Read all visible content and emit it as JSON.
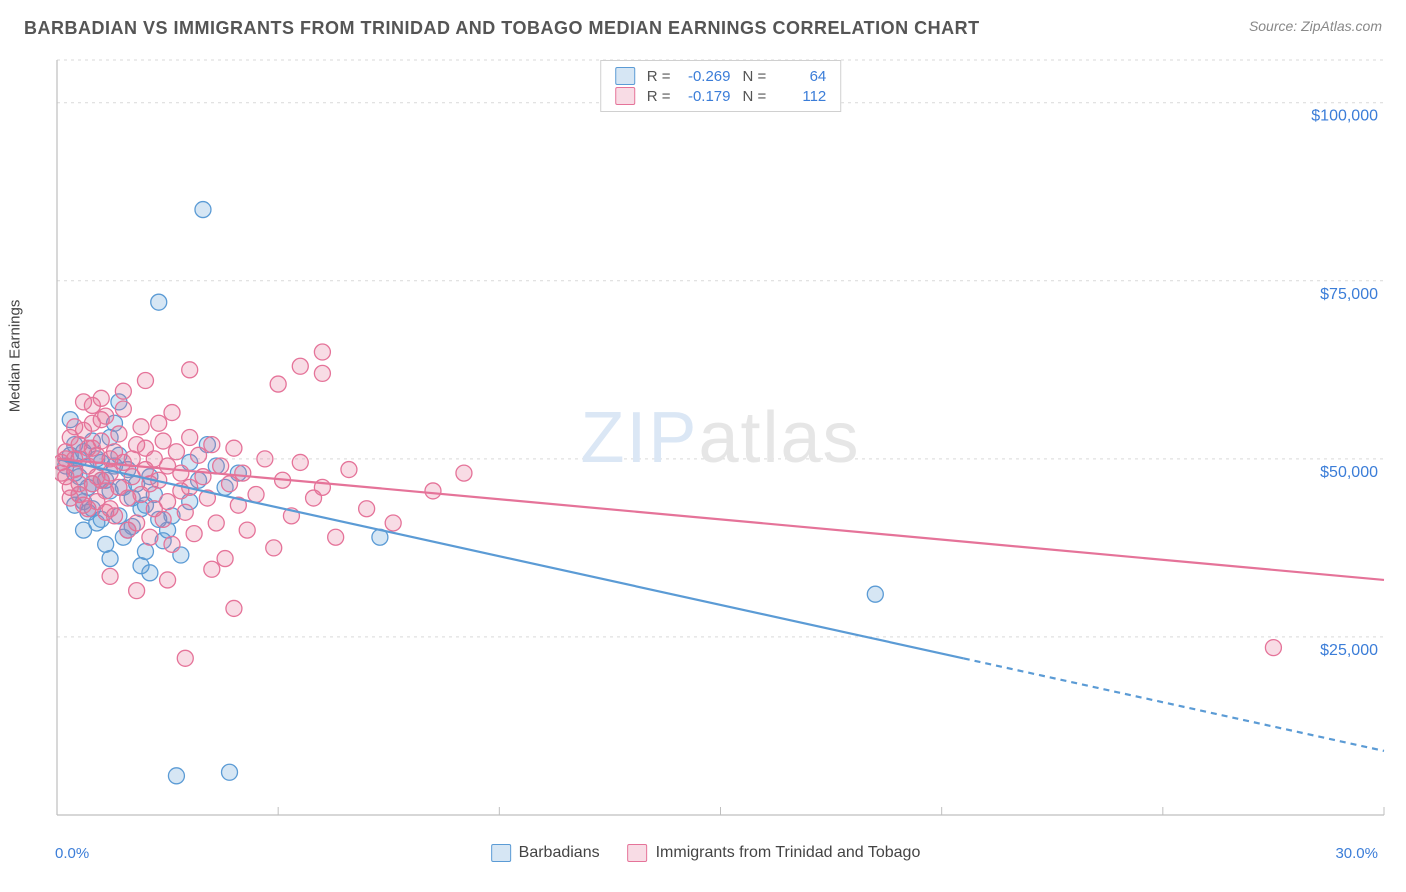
{
  "title": "BARBADIAN VS IMMIGRANTS FROM TRINIDAD AND TOBAGO MEDIAN EARNINGS CORRELATION CHART",
  "source": "Source: ZipAtlas.com",
  "watermark_a": "ZIP",
  "watermark_b": "atlas",
  "ylabel": "Median Earnings",
  "chart": {
    "type": "scatter-correlation",
    "xlim": [
      0.0,
      30.0
    ],
    "ylim": [
      0,
      106000
    ],
    "x_tick_label_left": "0.0%",
    "x_tick_label_right": "30.0%",
    "y_grid": [
      25000,
      50000,
      75000,
      100000
    ],
    "y_grid_labels": [
      "$25,000",
      "$50,000",
      "$75,000",
      "$100,000"
    ],
    "x_ticks": [
      0,
      5,
      10,
      15,
      20,
      25,
      30
    ],
    "grid_color": "#d9d9d9",
    "axis_color": "#bfbfbf",
    "tick_label_color": "#3b7dd8",
    "background_color": "#ffffff",
    "marker_radius": 8,
    "marker_fill_opacity": 0.25,
    "marker_stroke_width": 1.3,
    "trend_line_width": 2.2,
    "series": [
      {
        "key": "barbadians",
        "label": "Barbadians",
        "color": "#5b9bd5",
        "fill": "rgba(91,155,213,0.25)",
        "R": "-0.269",
        "N": "64",
        "trend": {
          "x1": 0.0,
          "y1": 50000,
          "x2": 30.0,
          "y2": 9000,
          "solid_until_x": 20.5
        },
        "points": [
          [
            0.2,
            49000
          ],
          [
            0.3,
            50500
          ],
          [
            0.4,
            48000
          ],
          [
            0.4,
            52000
          ],
          [
            0.5,
            45000
          ],
          [
            0.5,
            47500
          ],
          [
            0.6,
            51000
          ],
          [
            0.6,
            44000
          ],
          [
            0.7,
            46000
          ],
          [
            0.8,
            43000
          ],
          [
            0.8,
            52500
          ],
          [
            0.9,
            41000
          ],
          [
            1.0,
            47000
          ],
          [
            1.0,
            49500
          ],
          [
            1.1,
            38000
          ],
          [
            1.2,
            53000
          ],
          [
            1.2,
            45500
          ],
          [
            1.3,
            55000
          ],
          [
            1.4,
            58000
          ],
          [
            1.4,
            42000
          ],
          [
            1.5,
            39000
          ],
          [
            1.6,
            40000
          ],
          [
            1.6,
            48500
          ],
          [
            1.7,
            44500
          ],
          [
            1.8,
            46500
          ],
          [
            1.9,
            35000
          ],
          [
            2.0,
            43500
          ],
          [
            2.0,
            37000
          ],
          [
            2.1,
            34000
          ],
          [
            2.2,
            45000
          ],
          [
            2.3,
            41500
          ],
          [
            2.4,
            38500
          ],
          [
            2.6,
            42000
          ],
          [
            2.8,
            36500
          ],
          [
            3.0,
            44000
          ],
          [
            3.2,
            47000
          ],
          [
            3.4,
            52000
          ],
          [
            3.6,
            49000
          ],
          [
            3.8,
            46000
          ],
          [
            4.1,
            48000
          ],
          [
            2.3,
            72000
          ],
          [
            3.3,
            85000
          ],
          [
            2.7,
            5500
          ],
          [
            3.9,
            6000
          ],
          [
            7.3,
            39000
          ],
          [
            18.5,
            31000
          ],
          [
            0.3,
            55500
          ],
          [
            0.4,
            43500
          ],
          [
            0.5,
            50000
          ],
          [
            0.6,
            40000
          ],
          [
            0.7,
            42500
          ],
          [
            0.8,
            46500
          ],
          [
            0.9,
            50000
          ],
          [
            1.0,
            41500
          ],
          [
            1.1,
            47000
          ],
          [
            1.2,
            36000
          ],
          [
            1.3,
            49000
          ],
          [
            1.4,
            50500
          ],
          [
            1.5,
            46000
          ],
          [
            1.7,
            40500
          ],
          [
            1.9,
            43000
          ],
          [
            2.1,
            47500
          ],
          [
            2.5,
            40000
          ],
          [
            3.0,
            49500
          ]
        ]
      },
      {
        "key": "trinidad",
        "label": "Immigrants from Trinidad and Tobago",
        "color": "#e57399",
        "fill": "rgba(229,115,153,0.25)",
        "R": "-0.179",
        "N": "112",
        "trend": {
          "x1": 0.0,
          "y1": 50000,
          "x2": 30.0,
          "y2": 33000,
          "solid_until_x": 30.0
        },
        "points": [
          [
            0.1,
            49500
          ],
          [
            0.2,
            51000
          ],
          [
            0.2,
            47500
          ],
          [
            0.3,
            53000
          ],
          [
            0.3,
            46000
          ],
          [
            0.4,
            50000
          ],
          [
            0.4,
            48500
          ],
          [
            0.5,
            52000
          ],
          [
            0.5,
            45000
          ],
          [
            0.6,
            54000
          ],
          [
            0.6,
            43500
          ],
          [
            0.7,
            49000
          ],
          [
            0.7,
            51500
          ],
          [
            0.8,
            46500
          ],
          [
            0.8,
            55000
          ],
          [
            0.9,
            44000
          ],
          [
            0.9,
            50500
          ],
          [
            1.0,
            47000
          ],
          [
            1.0,
            52500
          ],
          [
            1.1,
            45500
          ],
          [
            1.1,
            56000
          ],
          [
            1.2,
            43000
          ],
          [
            1.2,
            48000
          ],
          [
            1.3,
            51000
          ],
          [
            1.3,
            42000
          ],
          [
            1.4,
            53500
          ],
          [
            1.4,
            46000
          ],
          [
            1.5,
            49500
          ],
          [
            1.5,
            57000
          ],
          [
            1.6,
            44500
          ],
          [
            1.6,
            40000
          ],
          [
            1.7,
            50000
          ],
          [
            1.7,
            47500
          ],
          [
            1.8,
            52000
          ],
          [
            1.8,
            41000
          ],
          [
            1.9,
            54500
          ],
          [
            1.9,
            45000
          ],
          [
            2.0,
            48500
          ],
          [
            2.0,
            51500
          ],
          [
            2.1,
            39000
          ],
          [
            2.1,
            46500
          ],
          [
            2.2,
            50000
          ],
          [
            2.2,
            43000
          ],
          [
            2.3,
            55000
          ],
          [
            2.3,
            47000
          ],
          [
            2.4,
            41500
          ],
          [
            2.4,
            52500
          ],
          [
            2.5,
            44000
          ],
          [
            2.5,
            49000
          ],
          [
            2.6,
            56500
          ],
          [
            2.6,
            38000
          ],
          [
            2.7,
            51000
          ],
          [
            2.8,
            45500
          ],
          [
            2.8,
            48000
          ],
          [
            2.9,
            42500
          ],
          [
            3.0,
            53000
          ],
          [
            3.0,
            46000
          ],
          [
            3.1,
            39500
          ],
          [
            3.2,
            50500
          ],
          [
            3.3,
            47500
          ],
          [
            3.4,
            44500
          ],
          [
            3.5,
            52000
          ],
          [
            3.6,
            41000
          ],
          [
            3.7,
            49000
          ],
          [
            3.8,
            36000
          ],
          [
            3.9,
            46500
          ],
          [
            4.0,
            51500
          ],
          [
            4.1,
            43500
          ],
          [
            4.2,
            48000
          ],
          [
            4.3,
            40000
          ],
          [
            4.5,
            45000
          ],
          [
            4.7,
            50000
          ],
          [
            4.9,
            37500
          ],
          [
            5.1,
            47000
          ],
          [
            5.3,
            42000
          ],
          [
            5.5,
            49500
          ],
          [
            5.8,
            44500
          ],
          [
            6.0,
            46000
          ],
          [
            6.3,
            39000
          ],
          [
            6.6,
            48500
          ],
          [
            7.0,
            43000
          ],
          [
            5.0,
            60500
          ],
          [
            5.5,
            63000
          ],
          [
            6.0,
            62000
          ],
          [
            6.0,
            65000
          ],
          [
            3.0,
            62500
          ],
          [
            2.0,
            61000
          ],
          [
            1.5,
            59500
          ],
          [
            1.0,
            58500
          ],
          [
            0.8,
            57500
          ],
          [
            2.9,
            22000
          ],
          [
            4.0,
            29000
          ],
          [
            3.5,
            34500
          ],
          [
            2.5,
            33000
          ],
          [
            1.8,
            31500
          ],
          [
            1.2,
            33500
          ],
          [
            27.5,
            23500
          ],
          [
            8.5,
            45500
          ],
          [
            9.2,
            48000
          ],
          [
            7.6,
            41000
          ],
          [
            0.1,
            48000
          ],
          [
            0.2,
            50000
          ],
          [
            0.3,
            44500
          ],
          [
            0.4,
            54500
          ],
          [
            0.5,
            46500
          ],
          [
            0.6,
            58000
          ],
          [
            0.7,
            43000
          ],
          [
            0.8,
            51500
          ],
          [
            0.9,
            47500
          ],
          [
            1.0,
            55500
          ],
          [
            1.1,
            42500
          ],
          [
            1.2,
            50000
          ]
        ]
      }
    ]
  },
  "legend_bottom": {
    "a": "Barbadians",
    "b": "Immigrants from Trinidad and Tobago"
  },
  "stats_labels": {
    "R": "R =",
    "N": "N ="
  }
}
